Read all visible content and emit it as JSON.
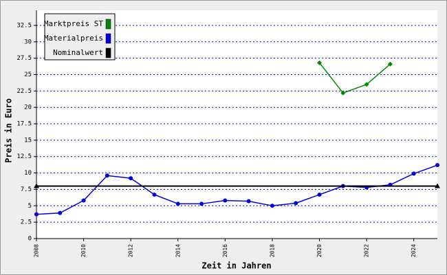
{
  "chart_data": {
    "type": "line",
    "x_label": "Zeit in Jahren",
    "y_label": "Preis in Euro",
    "xlim": [
      2008,
      2025
    ],
    "xticks": [
      2008,
      2010,
      2012,
      2014,
      2016,
      2018,
      2020,
      2022,
      2024
    ],
    "ylim": [
      0,
      34.8
    ],
    "yticks": [
      0,
      2.5,
      5,
      7.5,
      10,
      12.5,
      15,
      17.5,
      20,
      22.5,
      25,
      27.5,
      30,
      32.5
    ],
    "grid": true,
    "legend": "top-left",
    "series": [
      {
        "name": "Marktpreis ST",
        "color": "#008800",
        "marker": "diamond",
        "x": [
          2020,
          2021,
          2022,
          2023
        ],
        "values": [
          26.8,
          22.2,
          23.5,
          26.6
        ]
      },
      {
        "name": "Materialpreis",
        "color": "#0000dd",
        "marker": "circle",
        "x": [
          2008,
          2009,
          2010,
          2011,
          2012,
          2013,
          2014,
          2015,
          2016,
          2017,
          2018,
          2019,
          2020,
          2021,
          2022,
          2023,
          2024,
          2025
        ],
        "values": [
          3.7,
          3.9,
          5.8,
          9.6,
          9.2,
          6.7,
          5.3,
          5.3,
          5.8,
          5.7,
          5.0,
          5.4,
          6.7,
          8.0,
          7.8,
          8.2,
          9.9,
          11.2
        ]
      },
      {
        "name": "Nominalwert",
        "color": "#000000",
        "marker": "triangle",
        "x": [
          2008,
          2025
        ],
        "values": [
          8.0,
          8.0
        ]
      }
    ]
  }
}
